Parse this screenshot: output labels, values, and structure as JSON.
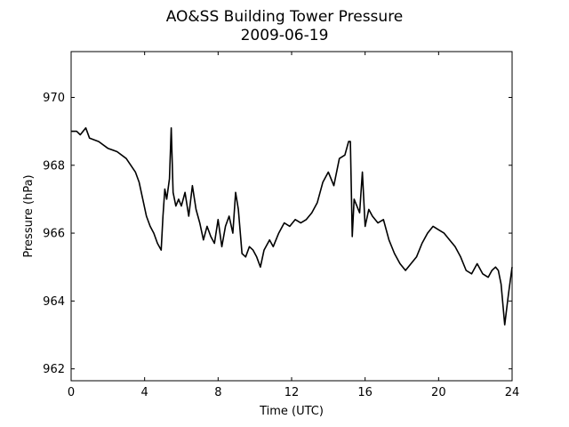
{
  "chart_data": {
    "type": "line",
    "title": "AO&SS Building Tower Pressure",
    "subtitle": "2009-06-19",
    "xlabel": "Time (UTC)",
    "ylabel": "Pressure (hPa)",
    "xlim": [
      0,
      24
    ],
    "ylim": [
      961.65,
      971.35
    ],
    "xticks": [
      0,
      4,
      8,
      12,
      16,
      20,
      24
    ],
    "yticks": [
      962,
      964,
      966,
      968,
      970
    ],
    "grid": false,
    "line_color": "#000000",
    "series": [
      {
        "x": [
          0,
          0.3,
          0.5,
          0.8,
          1.0,
          1.5,
          2.0,
          2.5,
          3.0,
          3.5,
          3.7,
          3.9,
          4.1,
          4.3,
          4.5,
          4.7,
          4.9,
          5.0,
          5.1,
          5.2,
          5.35,
          5.45,
          5.55,
          5.7,
          5.85,
          6.0,
          6.2,
          6.4,
          6.6,
          6.8,
          7.0,
          7.2,
          7.4,
          7.6,
          7.8,
          8.0,
          8.2,
          8.4,
          8.6,
          8.8,
          8.95,
          9.1,
          9.3,
          9.5,
          9.7,
          9.9,
          10.1,
          10.3,
          10.5,
          10.8,
          11.0,
          11.3,
          11.6,
          11.9,
          12.2,
          12.5,
          12.8,
          13.1,
          13.4,
          13.7,
          14.0,
          14.3,
          14.6,
          14.9,
          15.1,
          15.2,
          15.3,
          15.4,
          15.55,
          15.7,
          15.85,
          16.0,
          16.2,
          16.4,
          16.7,
          17.0,
          17.3,
          17.6,
          17.9,
          18.2,
          18.5,
          18.8,
          19.1,
          19.4,
          19.7,
          20.0,
          20.3,
          20.6,
          20.9,
          21.2,
          21.5,
          21.8,
          22.1,
          22.4,
          22.7,
          22.9,
          23.1,
          23.25,
          23.4,
          23.6,
          23.8,
          24.0
        ],
        "y": [
          969.0,
          969.0,
          968.9,
          969.1,
          968.8,
          968.7,
          968.5,
          968.4,
          968.2,
          967.8,
          967.5,
          967.0,
          966.5,
          966.2,
          966.0,
          965.7,
          965.5,
          966.5,
          967.3,
          967.0,
          967.6,
          969.1,
          967.2,
          966.8,
          967.0,
          966.8,
          967.2,
          966.5,
          967.4,
          966.7,
          966.3,
          965.8,
          966.2,
          965.9,
          965.7,
          966.4,
          965.6,
          966.2,
          966.5,
          966.0,
          967.2,
          966.7,
          965.4,
          965.3,
          965.6,
          965.5,
          965.3,
          965.0,
          965.5,
          965.8,
          965.6,
          966.0,
          966.3,
          966.2,
          966.4,
          966.3,
          966.4,
          966.6,
          966.9,
          967.5,
          967.8,
          967.4,
          968.2,
          968.3,
          968.7,
          968.7,
          965.9,
          967.0,
          966.8,
          966.6,
          967.8,
          966.2,
          966.7,
          966.5,
          966.3,
          966.4,
          965.8,
          965.4,
          965.1,
          964.9,
          965.1,
          965.3,
          965.7,
          966.0,
          966.2,
          966.1,
          966.0,
          965.8,
          965.6,
          965.3,
          964.9,
          964.8,
          965.1,
          964.8,
          964.7,
          964.9,
          965.0,
          964.9,
          964.5,
          963.3,
          964.2,
          965.0
        ]
      }
    ]
  }
}
